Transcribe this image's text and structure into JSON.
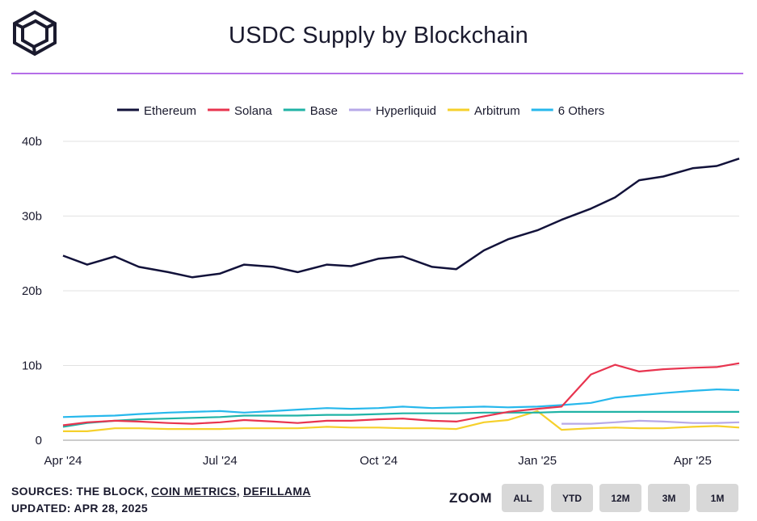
{
  "header": {
    "title": "USDC Supply by Blockchain",
    "logo_icon": "cube-logo-icon"
  },
  "footer": {
    "sources_prefix": "SOURCES: THE BLOCK, ",
    "source_1": "COIN METRICS",
    "separator": ", ",
    "source_2": "DEFILLAMA",
    "updated": "UPDATED: APR 28, 2025"
  },
  "zoom": {
    "label": "ZOOM",
    "buttons": [
      "ALL",
      "YTD",
      "12M",
      "3M",
      "1M"
    ]
  },
  "chart_data": {
    "type": "line",
    "title": "USDC Supply by Blockchain",
    "y_tick_labels": [
      "0",
      "10b",
      "20b",
      "30b",
      "40b"
    ],
    "x_tick_labels": [
      "Apr '24",
      "Jul '24",
      "Oct '24",
      "Jan '25",
      "Apr '25"
    ],
    "ylim": [
      0,
      40
    ],
    "y_unit": "b",
    "grid": true,
    "legend_position": "top-center",
    "x": [
      "2024-04-01",
      "2024-04-15",
      "2024-05-01",
      "2024-05-15",
      "2024-06-01",
      "2024-06-15",
      "2024-07-01",
      "2024-07-15",
      "2024-08-01",
      "2024-08-15",
      "2024-09-01",
      "2024-09-15",
      "2024-10-01",
      "2024-10-15",
      "2024-11-01",
      "2024-11-15",
      "2024-12-01",
      "2024-12-15",
      "2025-01-01",
      "2025-01-15",
      "2025-02-01",
      "2025-02-15",
      "2025-03-01",
      "2025-03-15",
      "2025-04-01",
      "2025-04-15",
      "2025-04-28"
    ],
    "series": [
      {
        "name": "Ethereum",
        "color": "#12123a",
        "values": [
          24.7,
          23.5,
          24.6,
          23.2,
          22.5,
          21.8,
          22.3,
          23.5,
          23.2,
          22.5,
          23.5,
          23.3,
          24.3,
          24.6,
          23.2,
          22.9,
          25.4,
          26.9,
          28.1,
          29.5,
          31.0,
          32.5,
          34.8,
          35.3,
          36.4,
          36.7,
          37.7
        ]
      },
      {
        "name": "Solana",
        "color": "#e8344f",
        "values": [
          2.0,
          2.4,
          2.6,
          2.5,
          2.3,
          2.2,
          2.4,
          2.7,
          2.5,
          2.3,
          2.6,
          2.6,
          2.8,
          2.9,
          2.6,
          2.5,
          3.2,
          3.8,
          4.2,
          4.5,
          8.8,
          10.1,
          9.2,
          9.5,
          9.7,
          9.8,
          10.3
        ]
      },
      {
        "name": "Base",
        "color": "#20b3a6",
        "values": [
          1.8,
          2.3,
          2.6,
          2.8,
          2.9,
          3.0,
          3.1,
          3.3,
          3.3,
          3.3,
          3.4,
          3.4,
          3.5,
          3.6,
          3.6,
          3.6,
          3.7,
          3.7,
          3.7,
          3.8,
          3.8,
          3.8,
          3.8,
          3.8,
          3.8,
          3.8,
          3.8
        ]
      },
      {
        "name": "Hyperliquid",
        "color": "#b7a9e8",
        "values": [
          null,
          null,
          null,
          null,
          null,
          null,
          null,
          null,
          null,
          null,
          null,
          null,
          null,
          null,
          null,
          null,
          null,
          null,
          null,
          2.2,
          2.2,
          2.4,
          2.6,
          2.5,
          2.3,
          2.3,
          2.4
        ]
      },
      {
        "name": "Arbitrum",
        "color": "#f6d02b",
        "values": [
          1.2,
          1.2,
          1.6,
          1.6,
          1.5,
          1.5,
          1.5,
          1.6,
          1.6,
          1.6,
          1.8,
          1.7,
          1.7,
          1.6,
          1.6,
          1.5,
          2.4,
          2.7,
          3.9,
          1.4,
          1.6,
          1.7,
          1.6,
          1.6,
          1.8,
          1.9,
          1.7
        ]
      },
      {
        "name": "6 Others",
        "color": "#27b8ec",
        "values": [
          3.1,
          3.2,
          3.3,
          3.5,
          3.7,
          3.8,
          3.9,
          3.7,
          3.9,
          4.1,
          4.3,
          4.2,
          4.3,
          4.5,
          4.3,
          4.4,
          4.5,
          4.4,
          4.5,
          4.7,
          5.0,
          5.7,
          6.0,
          6.3,
          6.6,
          6.8,
          6.7
        ]
      }
    ]
  }
}
